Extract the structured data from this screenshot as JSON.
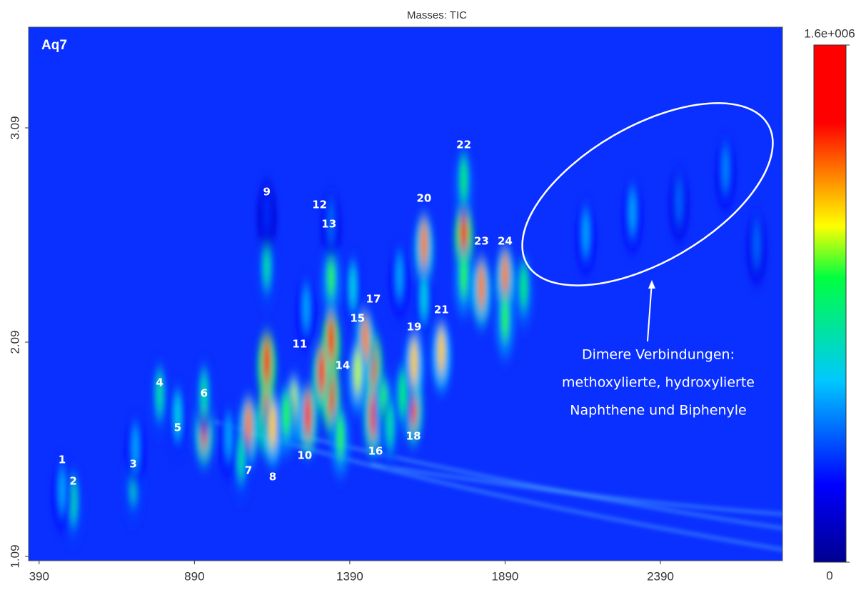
{
  "chart_data": {
    "type": "heatmap",
    "title": "Masses: TIC",
    "annotation": "Aq7",
    "background": "#0a30ff",
    "xlim": [
      356,
      2783
    ],
    "xticks": [
      390,
      890,
      1390,
      1890,
      2390
    ],
    "ylim": [
      1.07,
      3.56
    ],
    "yticks": [
      1.09,
      2.09,
      3.09
    ],
    "zlim": [
      0,
      1600000
    ],
    "zticks": [
      0,
      {
        "value": 1600000,
        "label": "1.6e+006"
      }
    ],
    "colorscale": [
      [
        0,
        "#000090"
      ],
      [
        0.15,
        "#0000ff"
      ],
      [
        0.35,
        "#00c8ff"
      ],
      [
        0.55,
        "#00ff40"
      ],
      [
        0.65,
        "#ffff00"
      ],
      [
        0.75,
        "#ff8000"
      ],
      [
        0.85,
        "#ff0000"
      ],
      [
        1,
        "#ff0000"
      ]
    ],
    "spots": {
      "x": [
        1123,
        1123,
        1123,
        1123,
        1330,
        1330,
        1330,
        1330,
        1300,
        1465,
        1465,
        1440,
        1415,
        1500,
        1255,
        1210,
        1064,
        1142,
        1185,
        921,
        921,
        836,
        778,
        693,
        700,
        500,
        464,
        1595,
        1597,
        1560,
        1629,
        1629,
        1685,
        1757,
        1757,
        1757,
        1814,
        1890,
        1890,
        1950,
        1040,
        1000,
        1360,
        1520,
        1400,
        2150,
        2300,
        2450,
        2600,
        2700,
        1250,
        1550
      ],
      "y": [
        2.0,
        1.75,
        2.45,
        2.7,
        2.1,
        1.85,
        2.4,
        2.65,
        1.95,
        2.0,
        1.75,
        2.1,
        1.95,
        1.8,
        1.75,
        1.8,
        1.7,
        1.7,
        1.75,
        1.7,
        1.85,
        1.75,
        1.85,
        1.45,
        1.6,
        1.35,
        1.4,
        1.8,
        2.0,
        1.85,
        2.55,
        2.3,
        2.05,
        2.6,
        2.85,
        2.4,
        2.35,
        2.4,
        2.2,
        2.35,
        1.55,
        1.65,
        1.65,
        1.7,
        2.35,
        2.6,
        2.7,
        2.75,
        2.9,
        2.55,
        2.25,
        2.4
      ],
      "z": [
        1600000,
        1500000,
        700000,
        300000,
        1600000,
        1500000,
        900000,
        400000,
        1400000,
        1500000,
        1300000,
        1200000,
        1000000,
        900000,
        1300000,
        1000000,
        1200000,
        1100000,
        900000,
        1300000,
        700000,
        600000,
        700000,
        700000,
        500000,
        700000,
        500000,
        1300000,
        1100000,
        800000,
        1200000,
        600000,
        1100000,
        1600000,
        800000,
        900000,
        1200000,
        1200000,
        900000,
        800000,
        700000,
        500000,
        900000,
        700000,
        600000,
        500000,
        500000,
        400000,
        450000,
        400000,
        500000,
        500000
      ]
    },
    "peak_labels": {
      "labels": [
        "1",
        "2",
        "3",
        "4",
        "5",
        "6",
        "7",
        "8",
        "9",
        "10",
        "11",
        "12",
        "13",
        "14",
        "15",
        "16",
        "17",
        "18",
        "19",
        "20",
        "21",
        "22",
        "23",
        "24"
      ],
      "x": [
        464,
        500,
        693,
        778,
        836,
        921,
        1064,
        1142,
        1123,
        1245,
        1229,
        1293,
        1323,
        1367,
        1415,
        1473,
        1466,
        1595,
        1597,
        1629,
        1685,
        1757,
        1814,
        1890
      ],
      "y": [
        1.54,
        1.44,
        1.52,
        1.9,
        1.69,
        1.85,
        1.49,
        1.46,
        2.79,
        1.56,
        2.08,
        2.73,
        2.64,
        1.98,
        2.2,
        1.58,
        2.29,
        1.65,
        2.16,
        2.76,
        2.24,
        3.01,
        2.56,
        2.56
      ]
    },
    "region_note": [
      "Dimere Verbindungen:",
      "methoxylierte, hydroxylierte",
      "Naphthene und Biphenyle"
    ]
  }
}
